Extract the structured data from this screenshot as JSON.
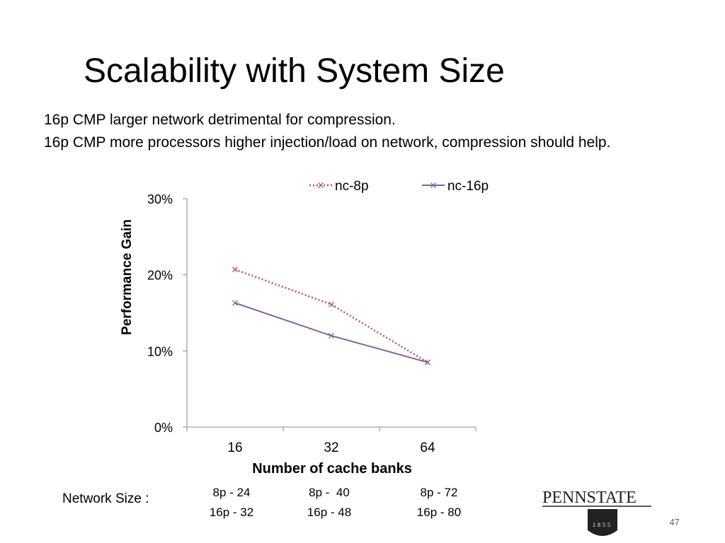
{
  "slide": {
    "title": "Scalability with System Size",
    "body": [
      "16p CMP larger network detrimental for compression.",
      "16p CMP more processors higher injection/load on network, compression should help."
    ],
    "network_label": "Network Size :",
    "network_sizes": [
      [
        "8p - 24",
        "16p - 32"
      ],
      [
        "8p -  40",
        "16p - 48"
      ],
      [
        "8p - 72",
        "16p - 80"
      ]
    ],
    "logo": "PENNSTATE",
    "logo_year": "1855",
    "page_number": "47"
  },
  "chart_data": {
    "type": "line",
    "categories": [
      "16",
      "32",
      "64"
    ],
    "series": [
      {
        "name": "nc-8p",
        "color": "#c0504d",
        "dash": true,
        "values": [
          20.7,
          16.1,
          8.5
        ]
      },
      {
        "name": "nc-16p",
        "color": "#8064a2",
        "dash": false,
        "values": [
          16.3,
          12.0,
          8.5
        ]
      }
    ],
    "ylim": [
      0,
      30
    ],
    "yticks": [
      {
        "value": 0,
        "label": "0%"
      },
      {
        "value": 10,
        "label": "10%"
      },
      {
        "value": 20,
        "label": "20%"
      },
      {
        "value": 30,
        "label": "30%"
      }
    ],
    "ylabel": "Performance Gain",
    "xlabel": "Number of cache banks",
    "legend": "top",
    "grid": false
  }
}
